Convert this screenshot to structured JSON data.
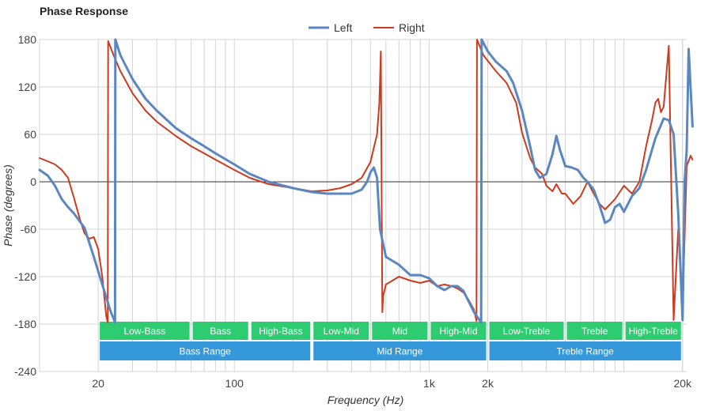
{
  "chart_data": {
    "type": "line",
    "title": "Phase Response",
    "xlabel": "Frequency (Hz)",
    "ylabel": "Phase (degrees)",
    "x_scale": "log",
    "xlim": [
      10,
      21000
    ],
    "ylim": [
      -240,
      180
    ],
    "y_ticks": [
      180,
      120,
      60,
      0,
      -60,
      -120,
      -180,
      -240
    ],
    "x_ticks": [
      {
        "value": 20,
        "label": "20"
      },
      {
        "value": 100,
        "label": "100"
      },
      {
        "value": 1000,
        "label": "1k"
      },
      {
        "value": 2000,
        "label": "2k"
      },
      {
        "value": 20000,
        "label": "20k"
      }
    ],
    "legend": {
      "position": "top-center"
    },
    "series": [
      {
        "name": "Left",
        "color": "#5b87c0",
        "points": [
          [
            10,
            15
          ],
          [
            11,
            8
          ],
          [
            12,
            -5
          ],
          [
            13,
            -22
          ],
          [
            14,
            -32
          ],
          [
            15,
            -40
          ],
          [
            17,
            -58
          ],
          [
            19,
            -95
          ],
          [
            21,
            -130
          ],
          [
            23,
            -162
          ],
          [
            24.4,
            -178
          ],
          [
            24.5,
            180
          ],
          [
            26,
            160
          ],
          [
            30,
            130
          ],
          [
            35,
            105
          ],
          [
            40,
            90
          ],
          [
            50,
            68
          ],
          [
            60,
            55
          ],
          [
            70,
            45
          ],
          [
            80,
            36
          ],
          [
            100,
            22
          ],
          [
            120,
            10
          ],
          [
            150,
            0
          ],
          [
            200,
            -8
          ],
          [
            250,
            -13
          ],
          [
            300,
            -15
          ],
          [
            400,
            -15
          ],
          [
            450,
            -10
          ],
          [
            480,
            0
          ],
          [
            500,
            12
          ],
          [
            520,
            18
          ],
          [
            540,
            5
          ],
          [
            560,
            -60
          ],
          [
            600,
            -95
          ],
          [
            700,
            -105
          ],
          [
            800,
            -118
          ],
          [
            900,
            -118
          ],
          [
            1000,
            -122
          ],
          [
            1100,
            -132
          ],
          [
            1200,
            -137
          ],
          [
            1300,
            -132
          ],
          [
            1400,
            -132
          ],
          [
            1500,
            -138
          ],
          [
            1700,
            -165
          ],
          [
            1850,
            -178
          ],
          [
            1860,
            180
          ],
          [
            2000,
            165
          ],
          [
            2200,
            152
          ],
          [
            2500,
            140
          ],
          [
            2700,
            125
          ],
          [
            3000,
            90
          ],
          [
            3300,
            45
          ],
          [
            3500,
            15
          ],
          [
            3700,
            5
          ],
          [
            4000,
            10
          ],
          [
            4300,
            35
          ],
          [
            4500,
            58
          ],
          [
            4700,
            40
          ],
          [
            5000,
            20
          ],
          [
            5400,
            18
          ],
          [
            5800,
            15
          ],
          [
            6200,
            5
          ],
          [
            6500,
            0
          ],
          [
            7000,
            -10
          ],
          [
            7500,
            -30
          ],
          [
            8000,
            -52
          ],
          [
            8500,
            -48
          ],
          [
            9000,
            -32
          ],
          [
            9500,
            -28
          ],
          [
            10000,
            -38
          ],
          [
            11000,
            -18
          ],
          [
            12000,
            -8
          ],
          [
            13000,
            15
          ],
          [
            14500,
            55
          ],
          [
            16000,
            80
          ],
          [
            17000,
            78
          ],
          [
            18000,
            60
          ],
          [
            19000,
            -40
          ],
          [
            20000,
            -175
          ],
          [
            20500,
            0
          ],
          [
            21000,
            40
          ],
          [
            21500,
            168
          ],
          [
            22500,
            70
          ]
        ]
      },
      {
        "name": "Right",
        "color": "#cc3b1d",
        "points": [
          [
            10,
            30
          ],
          [
            11,
            26
          ],
          [
            12,
            22
          ],
          [
            13,
            15
          ],
          [
            14,
            5
          ],
          [
            15,
            -20
          ],
          [
            16,
            -45
          ],
          [
            17,
            -65
          ],
          [
            18,
            -72
          ],
          [
            19,
            -70
          ],
          [
            20,
            -85
          ],
          [
            21,
            -120
          ],
          [
            22,
            -170
          ],
          [
            22.4,
            -178
          ],
          [
            22.5,
            178
          ],
          [
            24,
            160
          ],
          [
            26,
            140
          ],
          [
            30,
            112
          ],
          [
            35,
            90
          ],
          [
            40,
            76
          ],
          [
            50,
            58
          ],
          [
            60,
            45
          ],
          [
            70,
            36
          ],
          [
            80,
            28
          ],
          [
            100,
            15
          ],
          [
            120,
            5
          ],
          [
            150,
            -3
          ],
          [
            200,
            -8
          ],
          [
            250,
            -12
          ],
          [
            300,
            -11
          ],
          [
            350,
            -8
          ],
          [
            400,
            -3
          ],
          [
            450,
            5
          ],
          [
            500,
            25
          ],
          [
            540,
            60
          ],
          [
            555,
            100
          ],
          [
            565,
            165
          ],
          [
            575,
            -165
          ],
          [
            580,
            -145
          ],
          [
            600,
            -130
          ],
          [
            700,
            -120
          ],
          [
            800,
            -125
          ],
          [
            900,
            -128
          ],
          [
            1000,
            -125
          ],
          [
            1100,
            -132
          ],
          [
            1200,
            -130
          ],
          [
            1300,
            -132
          ],
          [
            1400,
            -135
          ],
          [
            1500,
            -140
          ],
          [
            1600,
            -150
          ],
          [
            1700,
            -162
          ],
          [
            1750,
            -176
          ],
          [
            1760,
            180
          ],
          [
            1900,
            160
          ],
          [
            2200,
            140
          ],
          [
            2500,
            125
          ],
          [
            2800,
            100
          ],
          [
            3000,
            62
          ],
          [
            3300,
            30
          ],
          [
            3500,
            18
          ],
          [
            3800,
            10
          ],
          [
            4000,
            -5
          ],
          [
            4300,
            -12
          ],
          [
            4500,
            -3
          ],
          [
            4800,
            -15
          ],
          [
            5000,
            -15
          ],
          [
            5500,
            -28
          ],
          [
            6000,
            -18
          ],
          [
            6500,
            0
          ],
          [
            7000,
            -15
          ],
          [
            7500,
            -28
          ],
          [
            8000,
            -35
          ],
          [
            9000,
            -22
          ],
          [
            10000,
            -5
          ],
          [
            11000,
            -15
          ],
          [
            12000,
            0
          ],
          [
            13000,
            45
          ],
          [
            14000,
            80
          ],
          [
            14500,
            100
          ],
          [
            15000,
            105
          ],
          [
            15500,
            88
          ],
          [
            16000,
            95
          ],
          [
            17000,
            172
          ],
          [
            18000,
            -175
          ],
          [
            19000,
            -60
          ],
          [
            20000,
            -160
          ],
          [
            21000,
            20
          ],
          [
            22000,
            33
          ],
          [
            22500,
            28
          ]
        ]
      }
    ],
    "bands_top": [
      {
        "label": "Low-Bass",
        "from": 20,
        "to": 60
      },
      {
        "label": "Bass",
        "from": 60,
        "to": 120
      },
      {
        "label": "High-Bass",
        "from": 120,
        "to": 250
      },
      {
        "label": "Low-Mid",
        "from": 250,
        "to": 500
      },
      {
        "label": "Mid",
        "from": 500,
        "to": 1000
      },
      {
        "label": "High-Mid",
        "from": 1000,
        "to": 2000
      },
      {
        "label": "Low-Treble",
        "from": 2000,
        "to": 5000
      },
      {
        "label": "Treble",
        "from": 5000,
        "to": 10000
      },
      {
        "label": "High-Treble",
        "from": 10000,
        "to": 20000
      }
    ],
    "bands_bottom": [
      {
        "label": "Bass Range",
        "from": 20,
        "to": 250
      },
      {
        "label": "Mid Range",
        "from": 250,
        "to": 2000
      },
      {
        "label": "Treble Range",
        "from": 2000,
        "to": 20000
      }
    ],
    "band_colors": {
      "top": "#2ecc71",
      "bottom": "#3498db"
    }
  }
}
